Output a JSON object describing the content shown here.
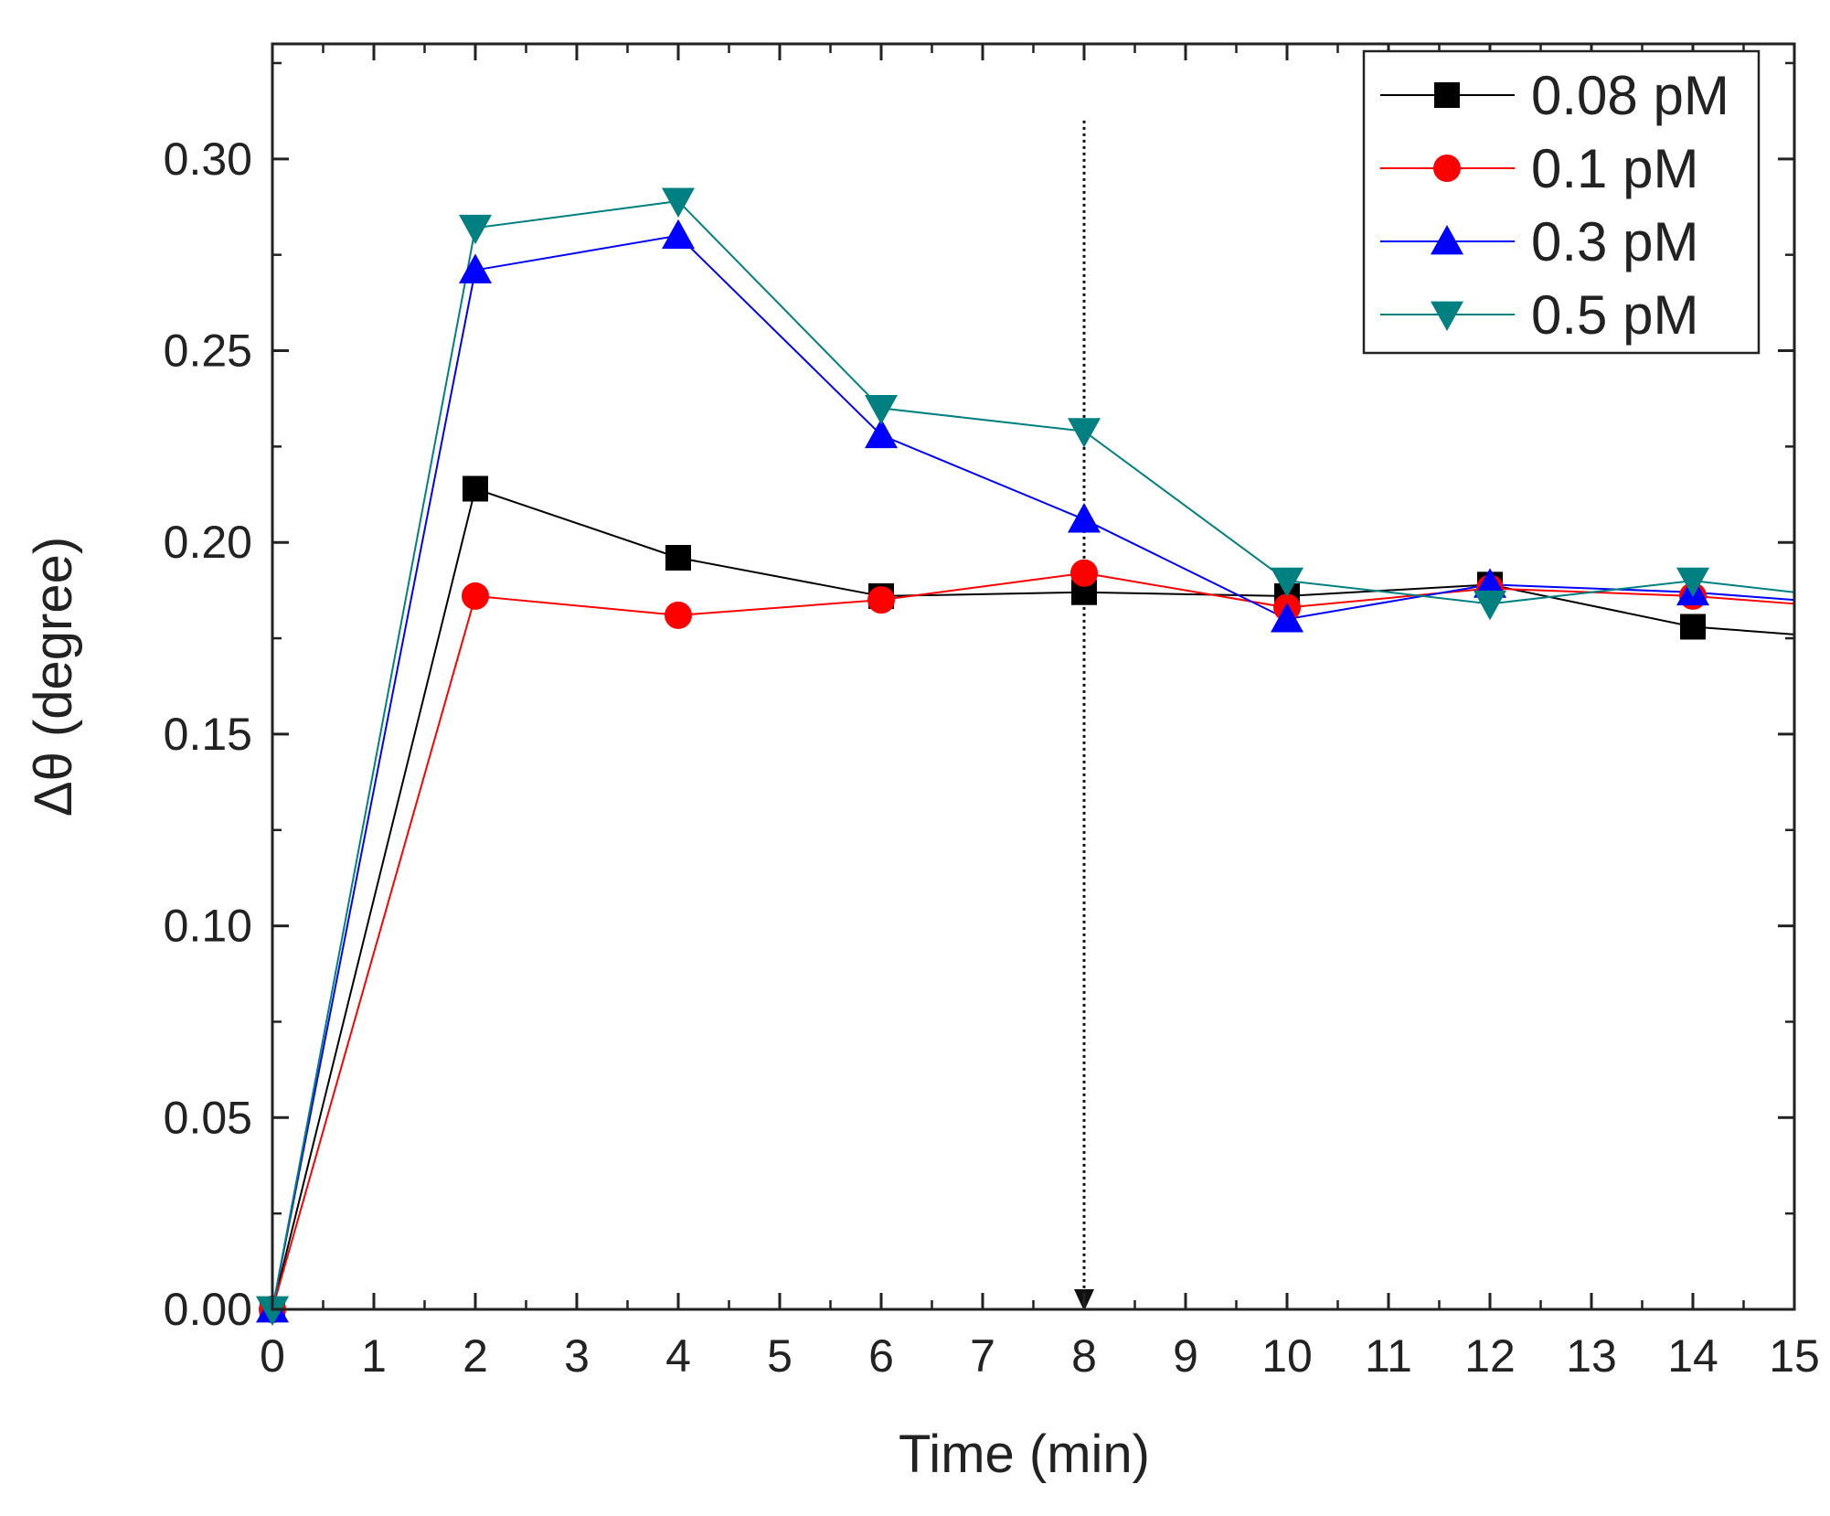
{
  "chart_data": {
    "type": "line",
    "xlabel": "Time (min)",
    "ylabel": "Δθ (degree)",
    "xlim": [
      0,
      15
    ],
    "ylim": [
      0,
      0.33
    ],
    "xticks": [
      "0",
      "1",
      "2",
      "3",
      "4",
      "5",
      "6",
      "7",
      "8",
      "9",
      "10",
      "11",
      "12",
      "13",
      "14",
      "15"
    ],
    "xtick_values": [
      0,
      1,
      2,
      3,
      4,
      5,
      6,
      7,
      8,
      9,
      10,
      11,
      12,
      13,
      14,
      15
    ],
    "yticks": [
      "0.00",
      "0.05",
      "0.10",
      "0.15",
      "0.20",
      "0.25",
      "0.30"
    ],
    "ytick_values": [
      0,
      0.05,
      0.1,
      0.15,
      0.2,
      0.25,
      0.3
    ],
    "legend_position": "top-right",
    "vline": {
      "x": 8,
      "style": "dotted",
      "marker": "arrow-down"
    },
    "series": [
      {
        "name": "0.08 pM",
        "color": "#000000",
        "marker": "square",
        "x": [
          0,
          2,
          4,
          6,
          8,
          10,
          12,
          14,
          15
        ],
        "y": [
          0,
          0.214,
          0.196,
          0.186,
          0.187,
          0.186,
          0.189,
          0.178,
          0.176
        ]
      },
      {
        "name": "0.1 pM",
        "color": "#ff0000",
        "marker": "circle",
        "x": [
          0,
          2,
          4,
          6,
          8,
          10,
          12,
          14,
          15
        ],
        "y": [
          0,
          0.186,
          0.181,
          0.185,
          0.192,
          0.183,
          0.188,
          0.186,
          0.184
        ]
      },
      {
        "name": "0.3 pM",
        "color": "#0000ff",
        "marker": "triangle-up",
        "x": [
          0,
          2,
          4,
          6,
          8,
          10,
          12,
          14,
          15
        ],
        "y": [
          0,
          0.271,
          0.28,
          0.228,
          0.206,
          0.18,
          0.189,
          0.187,
          0.185
        ]
      },
      {
        "name": "0.5 pM",
        "color": "#008080",
        "marker": "triangle-down",
        "x": [
          0,
          2,
          4,
          6,
          8,
          10,
          12,
          14,
          15
        ],
        "y": [
          0,
          0.282,
          0.289,
          0.235,
          0.229,
          0.19,
          0.184,
          0.19,
          0.187
        ]
      }
    ]
  }
}
